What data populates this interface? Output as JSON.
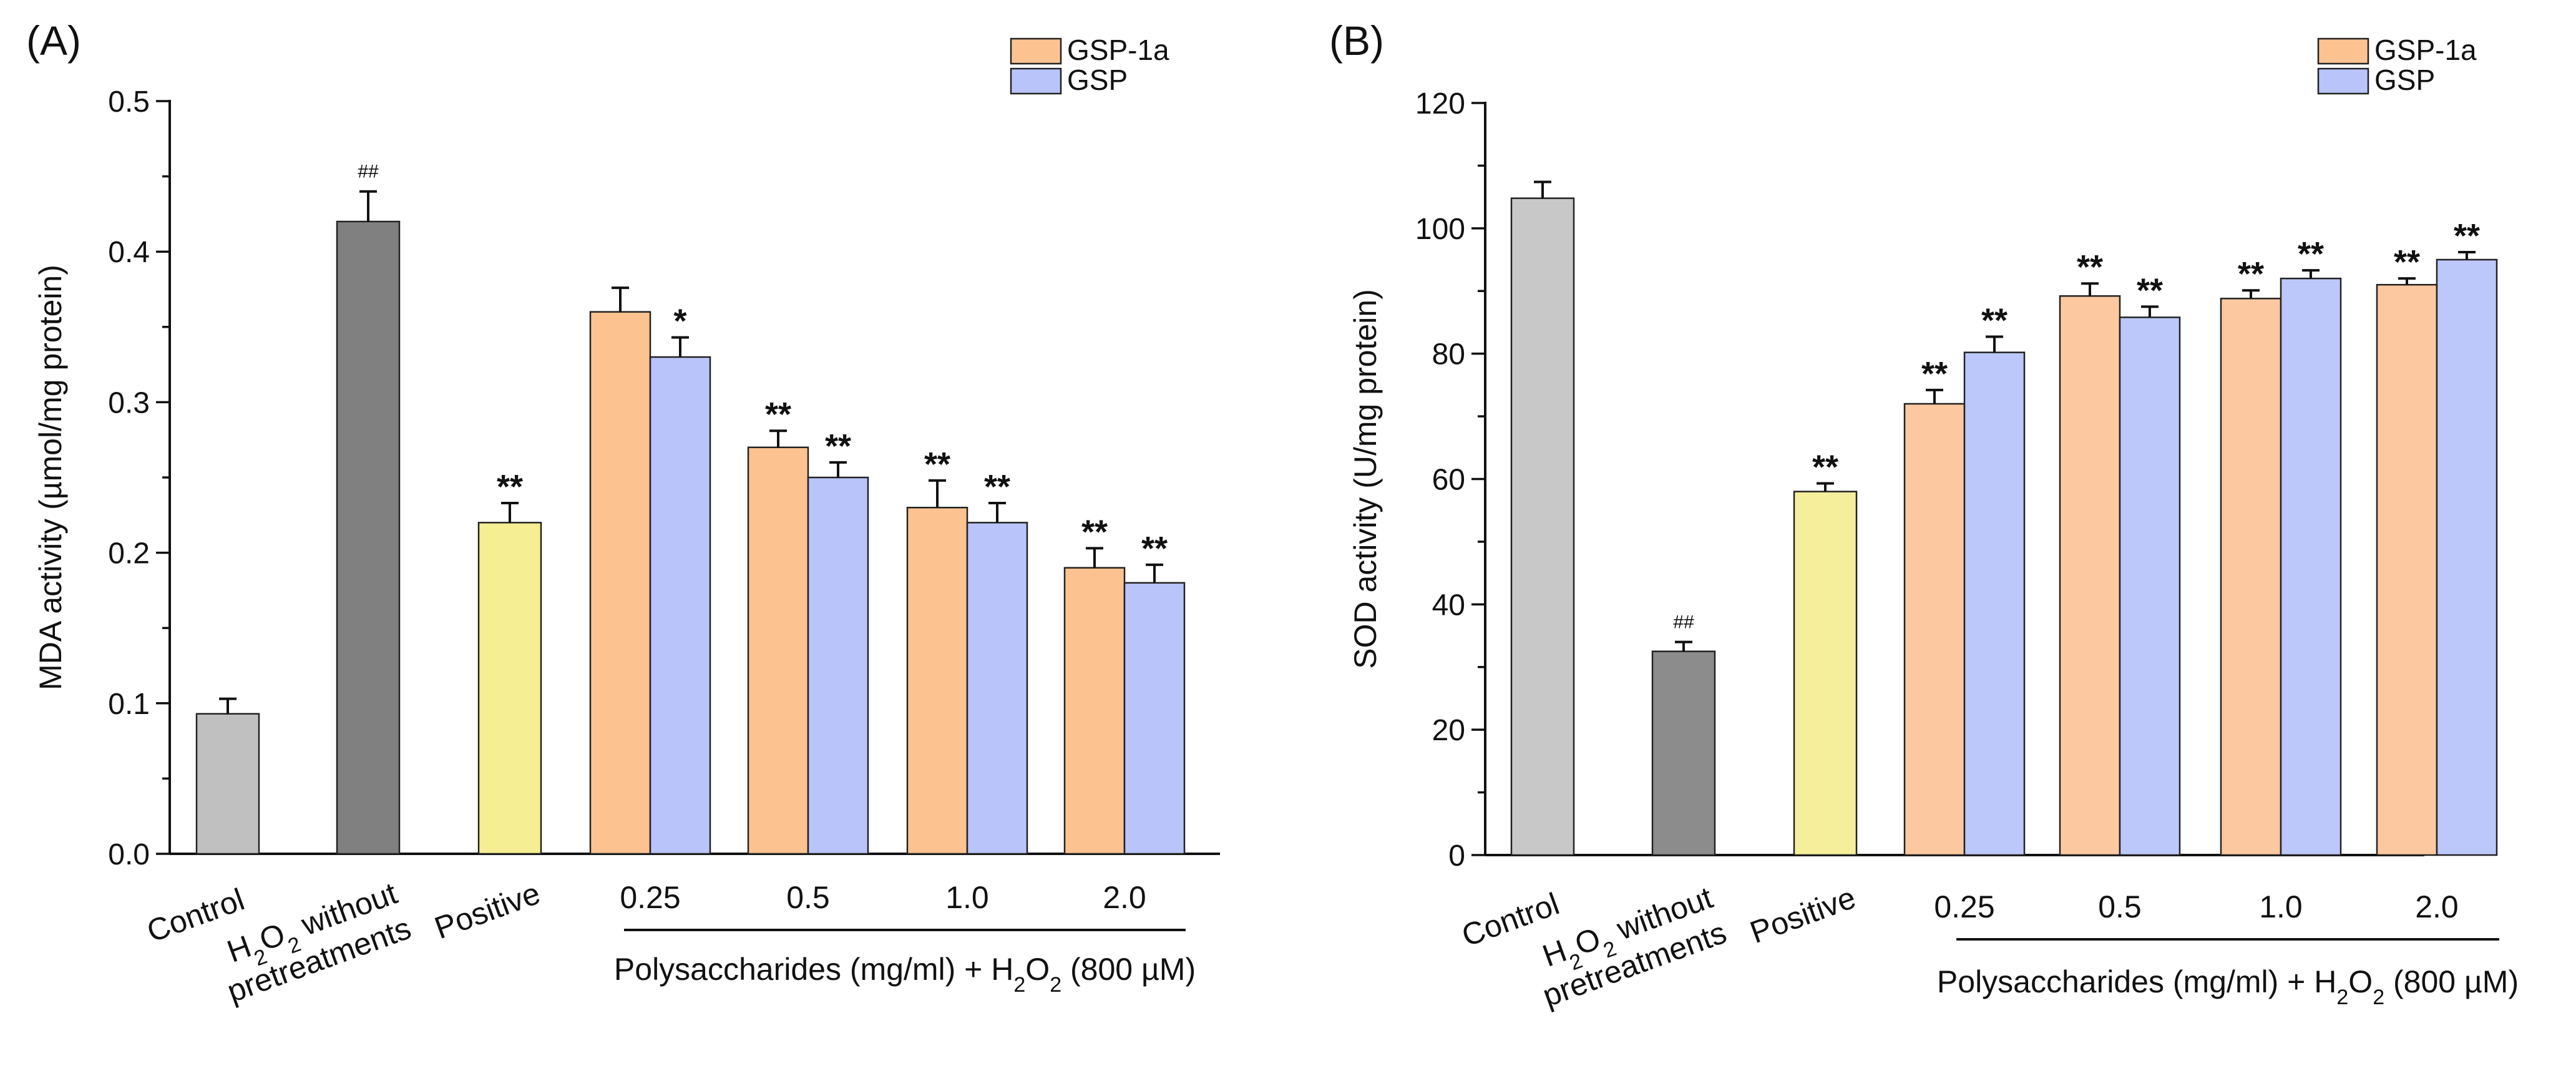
{
  "figure": {
    "notes": {
      "h2o2_label_line1_part1": "H",
      "h2o2_label_sub1": "2",
      "h2o2_label_part2": "O",
      "h2o2_label_sub2": "2",
      "h2o2_label_line1_part3": " without",
      "h2o2_label_line2": "pretreatments"
    },
    "xlabel_parts": {
      "prefix": "Polysaccharides (mg/ml) + H",
      "sub1": "2",
      "mid": "O",
      "sub2": "2",
      "suffix": " (800 µM)"
    }
  },
  "chart_data": [
    {
      "type": "bar",
      "panel_label": "(A)",
      "title": "",
      "ylabel": "MDA activity (µmol/mg protein)",
      "xlabel": "Polysaccharides (mg/ml) + H2O2 (800 µM)",
      "ylim": [
        0,
        0.5
      ],
      "yticks": [
        0.0,
        0.1,
        0.2,
        0.3,
        0.4,
        0.5
      ],
      "ytick_labels": [
        "0.0",
        "0.1",
        "0.2",
        "0.3",
        "0.4",
        "0.5"
      ],
      "ytick_minor_step": 0.05,
      "legend": {
        "position": "top-right",
        "entries": [
          {
            "name": "GSP-1a",
            "color": "#FCC290"
          },
          {
            "name": "GSP",
            "color": "#B8C4FA"
          }
        ]
      },
      "single_bars": [
        {
          "category": "Control",
          "value": 0.093,
          "error": 0.01,
          "color": "#C0C0C0",
          "sig": ""
        },
        {
          "category": "H2O2 without pretreatments",
          "value": 0.42,
          "error": 0.02,
          "color": "#808080",
          "sig": "##"
        },
        {
          "category": "Positive",
          "value": 0.22,
          "error": 0.013,
          "color": "#F5EE92",
          "sig": "**"
        }
      ],
      "concentrations": [
        "0.25",
        "0.5",
        "1.0",
        "2.0"
      ],
      "series": [
        {
          "name": "GSP-1a",
          "color": "#FCC290",
          "values": [
            0.36,
            0.27,
            0.23,
            0.19
          ],
          "errors": [
            0.016,
            0.011,
            0.018,
            0.013
          ],
          "sig": [
            "",
            "**",
            "**",
            "**"
          ]
        },
        {
          "name": "GSP",
          "color": "#B8C4FA",
          "values": [
            0.33,
            0.25,
            0.22,
            0.18
          ],
          "errors": [
            0.013,
            0.01,
            0.013,
            0.012
          ],
          "sig": [
            "*",
            "**",
            "**",
            "**"
          ]
        }
      ],
      "grid": false
    },
    {
      "type": "bar",
      "panel_label": "(B)",
      "title": "",
      "ylabel": "SOD activity (U/mg protein)",
      "xlabel": "Polysaccharides (mg/ml) + H2O2 (800 µM)",
      "ylim": [
        0,
        120
      ],
      "yticks": [
        0,
        20,
        40,
        60,
        80,
        100,
        120
      ],
      "ytick_labels": [
        "0",
        "20",
        "40",
        "60",
        "80",
        "100",
        "120"
      ],
      "ytick_minor_step": 10,
      "legend": {
        "position": "top-right",
        "entries": [
          {
            "name": "GSP-1a",
            "color": "#FCC290"
          },
          {
            "name": "GSP",
            "color": "#B8C4FA"
          }
        ]
      },
      "single_bars": [
        {
          "category": "Control",
          "value": 104.8,
          "error": 2.6,
          "color": "#C8C8C8",
          "sig": ""
        },
        {
          "category": "H2O2 without pretreatments",
          "value": 32.5,
          "error": 1.5,
          "color": "#8C8C8C",
          "sig": "##"
        },
        {
          "category": "Positive",
          "value": 58.0,
          "error": 1.3,
          "color": "#F5EE9B",
          "sig": "**"
        }
      ],
      "concentrations": [
        "0.25",
        "0.5",
        "1.0",
        "2.0"
      ],
      "series": [
        {
          "name": "GSP-1a",
          "color": "#FCC8A0",
          "values": [
            72.0,
            89.2,
            88.8,
            91.0
          ],
          "errors": [
            2.2,
            2.0,
            1.3,
            1.0
          ],
          "sig": [
            "**",
            "**",
            "**",
            "**"
          ]
        },
        {
          "name": "GSP",
          "color": "#BCC7FA",
          "values": [
            80.2,
            85.8,
            92.0,
            95.0
          ],
          "errors": [
            2.5,
            1.7,
            1.3,
            1.2
          ],
          "sig": [
            "**",
            "**",
            "**",
            "**"
          ]
        }
      ],
      "grid": false
    }
  ]
}
